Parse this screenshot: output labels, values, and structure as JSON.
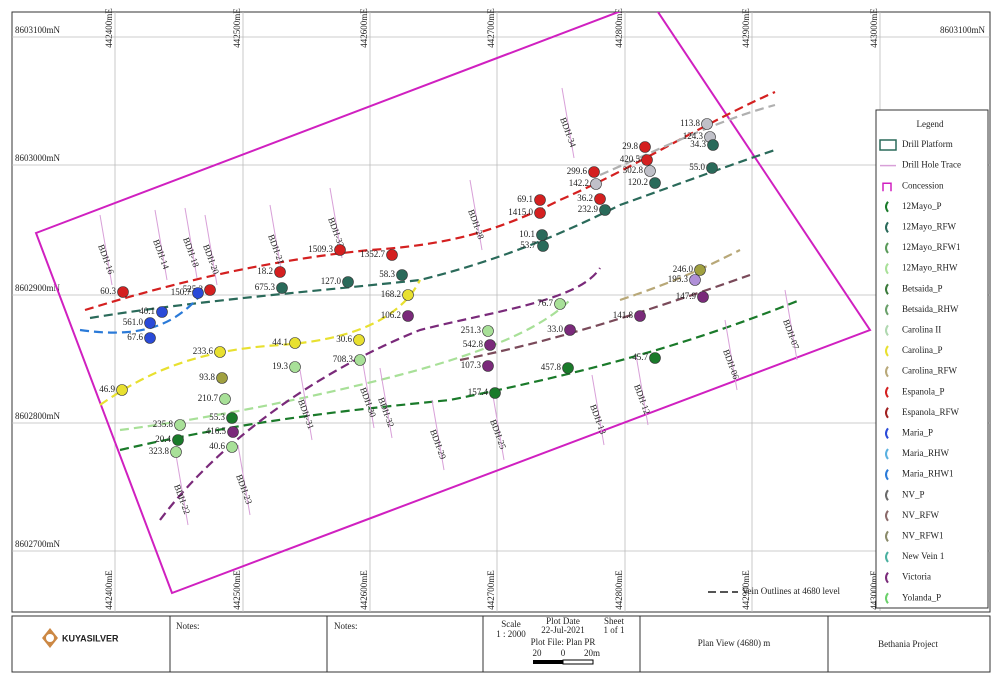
{
  "map": {
    "eastings": [
      "442400mE",
      "442500mE",
      "442600mE",
      "442700mE",
      "442800mE",
      "442900mE",
      "443000mE"
    ],
    "northings": [
      "8603100mN",
      "8603000mN",
      "8602900mN",
      "8602800mN",
      "8602700mN"
    ],
    "legend": {
      "title": "Legend",
      "items": [
        "Drill Platform",
        "Drill Hole Trace",
        "Concession",
        "12Mayo_P",
        "12Mayo_RFW",
        "12Mayo_RFW1",
        "12Mayo_RHW",
        "Betsaida_P",
        "Betsaida_RHW",
        "Carolina II",
        "Carolina_P",
        "Carolina_RFW",
        "Espanola_P",
        "Espanola_RFW",
        "Maria_P",
        "Maria_RHW",
        "Maria_RHW1",
        "NV_P",
        "NV_RFW",
        "NV_RFW1",
        "New Vein 1",
        "Victoria",
        "Yolanda_P"
      ]
    },
    "level_note": "Vein Outlines at 4680 level",
    "holes": [
      "BDH-16",
      "BDH-14",
      "BDH-18",
      "BDH-20",
      "BDH-21",
      "BDH-33",
      "BDH-31",
      "BDH-30",
      "BDH-32",
      "BDH-29",
      "BDH-28",
      "BDH-25",
      "BDH-34",
      "BDH-13",
      "BDH-12",
      "BDH-06",
      "BDH-07",
      "BDH-22",
      "BDH-23"
    ],
    "intercepts": [
      "60.3",
      "40.1",
      "561.0",
      "67.6",
      "525.2",
      "150.7",
      "18.2",
      "675.3",
      "1509.3",
      "127.0",
      "1352.7",
      "58.3",
      "168.2",
      "106.2",
      "233.6",
      "93.8",
      "46.9",
      "44.1",
      "19.3",
      "210.7",
      "30.6",
      "708.3",
      "251.3",
      "542.8",
      "107.3",
      "157.4",
      "69.1",
      "1415.0",
      "10.1",
      "53.7",
      "76.7",
      "33.0",
      "457.8",
      "299.6",
      "142.2",
      "36.2",
      "232.9",
      "29.8",
      "420.5",
      "302.8",
      "120.2",
      "141.8",
      "45.7",
      "113.8",
      "124.3",
      "34.3",
      "55.0",
      "246.0",
      "195.3",
      "147.9",
      "235.8",
      "20.4",
      "323.8",
      "55.3",
      "416.5",
      "40.6"
    ]
  },
  "title_block": {
    "company": "KUYASILVER",
    "notes_1": "Notes:",
    "notes_2": "Notes:",
    "scale_label": "Scale",
    "scale": "1 : 2000",
    "plot_date_label": "Plot Date",
    "plot_date": "22-Jul-2021",
    "sheet_label": "Sheet",
    "sheet": "1 of 1",
    "plot_file": "Plot File: Plan PR",
    "bar_left": "20",
    "bar_mid": "0",
    "bar_right": "20m",
    "view": "Plan View (4680) m",
    "project": "Bethania Project"
  }
}
